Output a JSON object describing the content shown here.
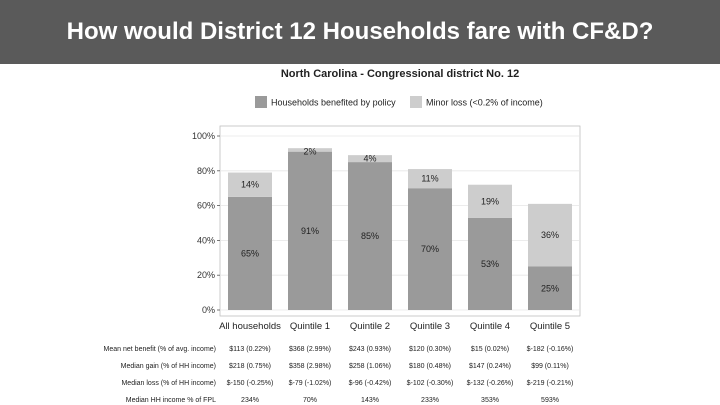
{
  "slide": {
    "title": "How would District 12 Households fare with CF&D?"
  },
  "colors": {
    "header_bg": "#5a5a5a",
    "benefited": "#9a9a9a",
    "minor_loss": "#cdcdcd",
    "panel_bg": "#ffffff",
    "grid": "#e6e6e6"
  },
  "chart_data": {
    "type": "bar",
    "stacked": true,
    "title": "North Carolina - Congressional district No. 12",
    "categories": [
      "All households",
      "Quintile 1",
      "Quintile 2",
      "Quintile 3",
      "Quintile 4",
      "Quintile 5"
    ],
    "series": [
      {
        "name": "Households benefited by policy",
        "values": [
          65,
          91,
          85,
          70,
          53,
          25
        ],
        "labels": [
          "65%",
          "91%",
          "85%",
          "70%",
          "53%",
          "25%"
        ]
      },
      {
        "name": "Minor loss (<0.2% of income)",
        "values": [
          14,
          2,
          4,
          11,
          19,
          36
        ],
        "labels": [
          "14%",
          "2%",
          "4%",
          "11%",
          "19%",
          "36%"
        ]
      }
    ],
    "ylim": [
      0,
      100
    ],
    "yticks": [
      0,
      20,
      40,
      60,
      80,
      100
    ],
    "ytick_labels": [
      "0%",
      "20%",
      "40%",
      "60%",
      "80%",
      "100%"
    ],
    "grid": true,
    "legend_position": "top",
    "stats_table": [
      {
        "label": "Mean net benefit (% of avg. income)",
        "values": [
          "$113 (0.22%)",
          "$368 (2.99%)",
          "$243 (0.93%)",
          "$120 (0.30%)",
          "$15 (0.02%)",
          "$-182 (-0.16%)"
        ]
      },
      {
        "label": "Median gain (% of HH income)",
        "values": [
          "$218 (0.75%)",
          "$358 (2.98%)",
          "$258 (1.06%)",
          "$180 (0.48%)",
          "$147 (0.24%)",
          "$99 (0.11%)"
        ]
      },
      {
        "label": "Median loss (% of HH income)",
        "values": [
          "$-150 (-0.25%)",
          "$-79 (-1.02%)",
          "$-96 (-0.42%)",
          "$-102 (-0.30%)",
          "$-132 (-0.26%)",
          "$-219 (-0.21%)"
        ]
      },
      {
        "label": "Median HH income % of FPL",
        "values": [
          "234%",
          "70%",
          "143%",
          "233%",
          "353%",
          "593%"
        ]
      }
    ]
  }
}
